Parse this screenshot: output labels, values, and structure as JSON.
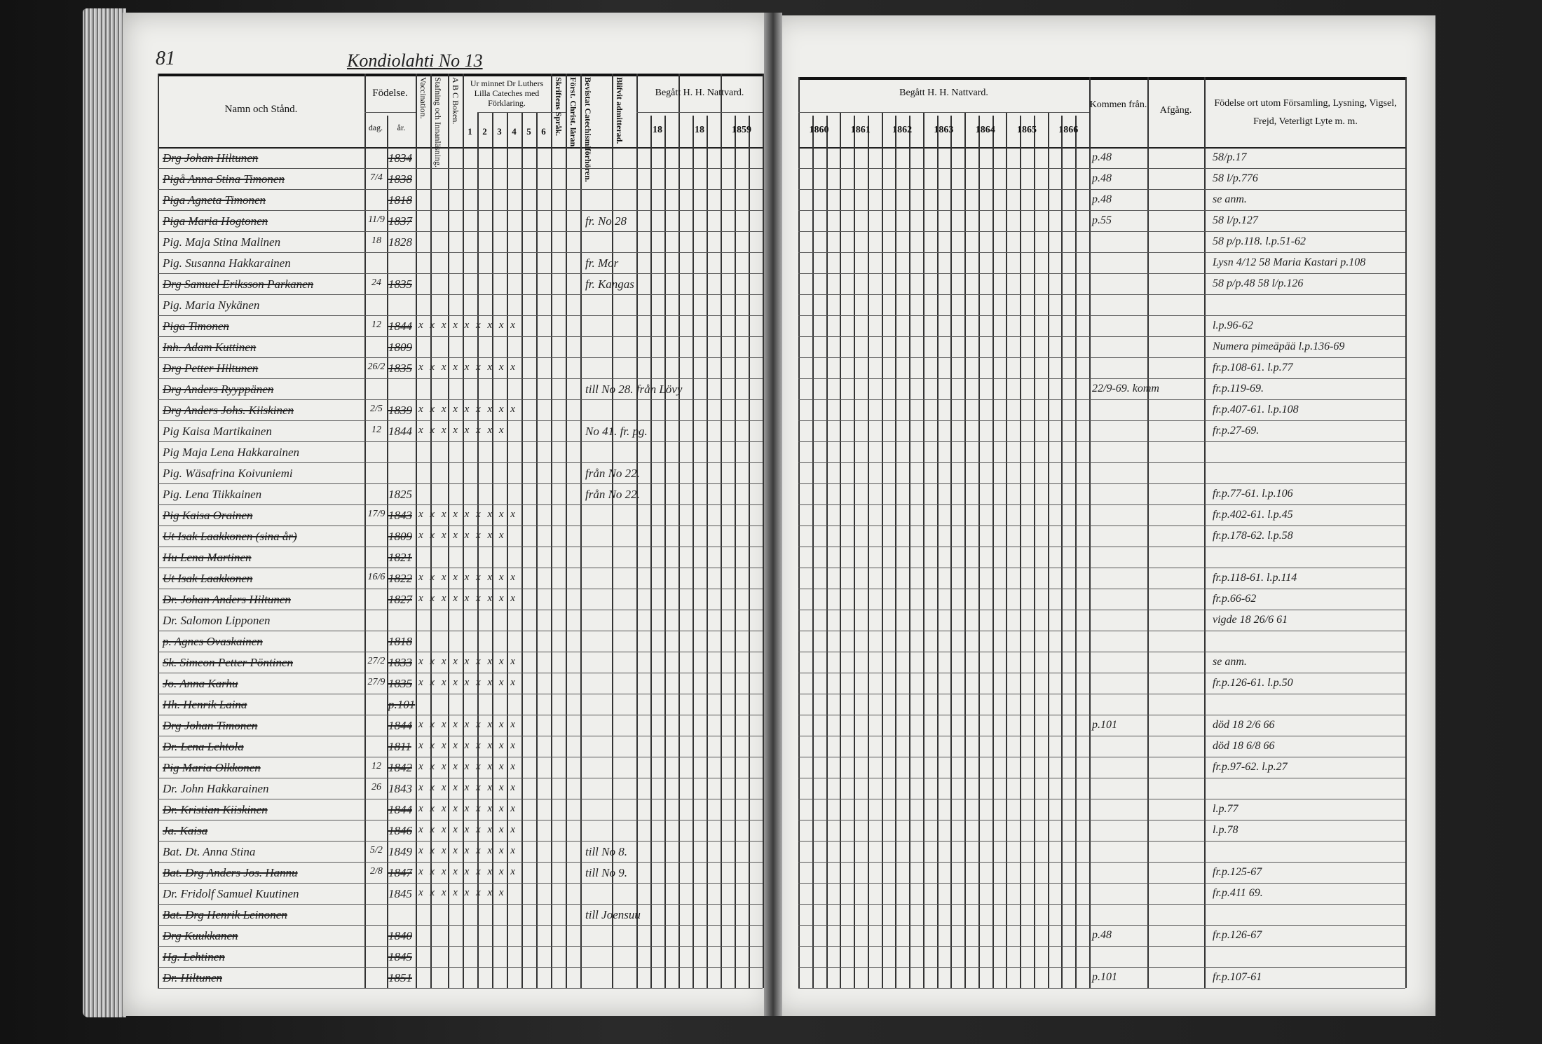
{
  "page_number": "81",
  "page_heading": "Kondiolahti No 13",
  "left_header": {
    "name": "Namn och Stånd.",
    "birth": "Födelse.",
    "day": "dag.",
    "year": "år.",
    "vaccination": "Vaccination.",
    "spelling": "Stafning och Innanläsning.",
    "abc": "A B C Boken.",
    "catechism": "Ur minnet Dr Luthers Lilla Cateches med Förklaring.",
    "catechism_parts": [
      "1",
      "2",
      "3",
      "4",
      "5",
      "6"
    ],
    "scripture": "Skriftens Språk.",
    "christianity": "Först. Christ. läran.",
    "exam": "Bevistat Catechismiförhören.",
    "admitted": "Blifvit admitterad.",
    "communion": "Begått H. H. Nattvard.",
    "communion_years": [
      "18",
      "18",
      "1859"
    ]
  },
  "right_header": {
    "communion": "Begått H. H. Nattvard.",
    "communion_years": [
      "1860",
      "1861",
      "1862",
      "1863",
      "1864",
      "1865",
      "1866"
    ],
    "arrived": "Kommen från.",
    "departed": "Afgång.",
    "notes": "Födelse ort utom Församling, Lysning, Vigsel, Frejd, Veterligt Lyte m. m."
  },
  "rows": [
    {
      "name": "Drg Johan Hiltunen",
      "struck": true,
      "day": "",
      "year": "1834",
      "kommen": "p.48",
      "note": "58/p.17"
    },
    {
      "name": "Pigå Anna Stina Timonen",
      "struck": true,
      "day": "7/4",
      "year": "1838",
      "kommen": "p.48",
      "note": "58 l/p.776"
    },
    {
      "name": "Piga Agneta Timonen",
      "struck": true,
      "day": "",
      "year": "1818",
      "kommen": "p.48",
      "note": "se anm."
    },
    {
      "name": "Piga Maria Hogtonen",
      "struck": true,
      "day": "11/9",
      "year": "1837",
      "mid": "fr. No 28",
      "kommen": "p.55",
      "note": "58 l/p.127"
    },
    {
      "name": "Pig. Maja Stina Malinen",
      "struck": false,
      "day": "18",
      "year": "1828",
      "note": "58 p/p.118. l.p.51-62"
    },
    {
      "name": "Pig. Susanna Hakkarainen",
      "struck": false,
      "mid": "fr. Mor",
      "note": "Lysn 4/12 58 Maria Kastari p.108"
    },
    {
      "name": "Drg Samuel Eriksson Parkanen",
      "struck": true,
      "day": "24",
      "year": "1835",
      "mid": "fr. Kangas",
      "note": "58 p/p.48 58 l/p.126"
    },
    {
      "name": "Pig. Maria Nykänen",
      "struck": false
    },
    {
      "name": "Piga Timonen",
      "struck": true,
      "day": "12",
      "year": "1844",
      "marks": "x x x x x x x x x",
      "note": "l.p.96-62"
    },
    {
      "name": "Inh. Adam Kuttinen",
      "struck": true,
      "year": "1809",
      "note": "Numera pimeäpää l.p.136-69"
    },
    {
      "name": "Drg Petter Hiltunen",
      "struck": true,
      "day": "26/2",
      "year": "1835",
      "marks": "x x x x x x x x x",
      "note": "fr.p.108-61. l.p.77"
    },
    {
      "name": "Drg Anders Ryyppänen",
      "struck": true,
      "mid": "till No 28. från Lövy",
      "kommen": "22/9-69. komm",
      "note": "fr.p.119-69."
    },
    {
      "name": "Drg Anders Johs. Kiiskinen",
      "struck": true,
      "day": "2/5",
      "year": "1839",
      "marks": "x x x x x x x x x",
      "note": "fr.p.407-61. l.p.108"
    },
    {
      "name": "Pig Kaisa Martikainen",
      "struck": false,
      "day": "12",
      "year": "1844",
      "marks": "x x x x x x x x",
      "mid": "No 41. fr. pg.",
      "note": "fr.p.27-69."
    },
    {
      "name": "Pig Maja Lena Hakkarainen",
      "struck": false
    },
    {
      "name": "Pig. Wäsafrina Koivuniemi",
      "struck": false,
      "mid": "från No 22.",
      "note": ""
    },
    {
      "name": "Pig. Lena Tiikkainen",
      "struck": false,
      "year": "1825",
      "mid": "från No 22.",
      "note": "fr.p.77-61. l.p.106"
    },
    {
      "name": "Pig Kaisa Orainen",
      "struck": true,
      "day": "17/9",
      "year": "1843",
      "marks": "x x x x x x x x x",
      "note": "fr.p.402-61. l.p.45"
    },
    {
      "name": "Ut Isak Laakkonen (sina år)",
      "struck": true,
      "year": "1809",
      "marks": "x x x x x x x x",
      "note": "fr.p.178-62. l.p.58"
    },
    {
      "name": "Hu Lena Martinen",
      "struck": true,
      "year": "1821"
    },
    {
      "name": "Ut Isak Laakkonen",
      "struck": true,
      "day": "16/6",
      "year": "1822",
      "marks": "x x x x x x x x x",
      "note": "fr.p.118-61. l.p.114"
    },
    {
      "name": "Dr. Johan Anders Hiltunen",
      "struck": true,
      "year": "1827",
      "marks": "x x x x x x x x x",
      "note": "fr.p.66-62"
    },
    {
      "name": "Dr. Salomon Lipponen",
      "struck": false,
      "note": "vigde 18 26/6 61"
    },
    {
      "name": "p. Agnes Ovaskainen",
      "struck": true,
      "year": "1818"
    },
    {
      "name": "Sk. Simeon Petter Pöntinen",
      "struck": true,
      "day": "27/2",
      "year": "1833",
      "marks": "x x x x x x x x x",
      "note": "se anm."
    },
    {
      "name": "Jo. Anna Karhu",
      "struck": true,
      "day": "27/9",
      "year": "1835",
      "marks": "x x x x x x x x x",
      "note": "fr.p.126-61. l.p.50"
    },
    {
      "name": "Hh. Henrik Laina",
      "struck": true,
      "year": "p.101"
    },
    {
      "name": "Drg Johan Timonen",
      "struck": true,
      "year": "1844",
      "marks": "x x x x x x x x x",
      "kommen": "p.101",
      "note": "död 18 2/6 66"
    },
    {
      "name": "Dr. Lena Lehtola",
      "struck": true,
      "year": "1811",
      "marks": "x x x x x x x x x",
      "note": "död 18 6/8 66"
    },
    {
      "name": "Pig Maria Olkkonen",
      "struck": true,
      "day": "12",
      "year": "1842",
      "marks": "x x x x x x x x x",
      "note": "fr.p.97-62. l.p.27"
    },
    {
      "name": "Dr. John Hakkarainen",
      "struck": false,
      "day": "26",
      "year": "1843",
      "marks": "x x x x x x x x x",
      "note": ""
    },
    {
      "name": "Dr. Kristian Kiiskinen",
      "struck": true,
      "year": "1844",
      "marks": "x x x x x x x x x",
      "note": "l.p.77"
    },
    {
      "name": "Ja. Kaisa",
      "struck": true,
      "year": "1846",
      "marks": "x x x x x x x x x",
      "note": "l.p.78"
    },
    {
      "name": "Bat. Dt. Anna Stina",
      "struck": false,
      "day": "5/2",
      "year": "1849",
      "marks": "x x x x x x x x x",
      "mid": "till No 8.",
      "note": ""
    },
    {
      "name": "Bat. Drg Anders Jos. Hannu",
      "struck": true,
      "day": "2/8",
      "year": "1847",
      "marks": "x x x x x x x x x",
      "mid": "till No 9.",
      "note": "fr.p.125-67"
    },
    {
      "name": "Dr. Fridolf Samuel Kuutinen",
      "struck": false,
      "year": "1845",
      "marks": "x x x x x x x x",
      "note": "fr.p.411 69."
    },
    {
      "name": "Bat. Drg Henrik Leinonen",
      "struck": true,
      "mid": "till Joensuu",
      "note": ""
    },
    {
      "name": "Drg Kuukkanen",
      "struck": true,
      "year": "1840",
      "kommen": "p.48",
      "note": "fr.p.126-67"
    },
    {
      "name": "Hg. Lehtinen",
      "struck": true,
      "year": "1845"
    },
    {
      "name": "Dr. Hiltunen",
      "struck": true,
      "year": "1851",
      "kommen": "p.101",
      "note": "fr.p.107-61"
    }
  ]
}
